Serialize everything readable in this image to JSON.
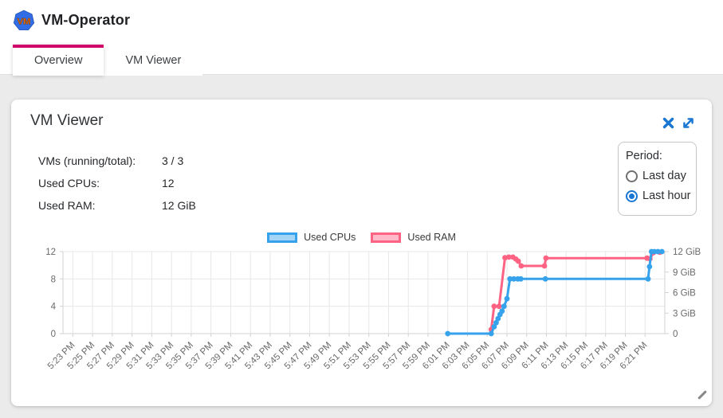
{
  "header": {
    "title": "VM-Operator",
    "logo_text": "VM"
  },
  "tabs": [
    {
      "label": "Overview",
      "active": true
    },
    {
      "label": "VM Viewer",
      "active": false
    }
  ],
  "panel": {
    "title": "VM Viewer",
    "stats": [
      {
        "label": "VMs (running/total):",
        "value": "3 / 3"
      },
      {
        "label": "Used CPUs:",
        "value": "12"
      },
      {
        "label": "Used RAM:",
        "value": "12 GiB"
      }
    ],
    "period": {
      "label": "Period:",
      "options": [
        {
          "label": "Last day",
          "selected": false
        },
        {
          "label": "Last hour",
          "selected": true
        }
      ]
    }
  },
  "icons": {
    "logo": "blue-heptagon-vm-badge",
    "close": "close-x",
    "expand": "diagonal-expand-arrows",
    "resize": "diagonal-resize-grip"
  },
  "colors": {
    "tab_indicator": "#d00669",
    "icon_blue": "#1976d2",
    "logo_blue": "#326de6",
    "logo_text_orange": "#f57200",
    "grid": "#e7e7e7",
    "axis_border": "#d2d2d2",
    "axis_text": "#696969",
    "content_background": "#ebebeb"
  },
  "chart_data": {
    "type": "line",
    "title": "",
    "x_unit_note": "minutes after 5:23 PM, 2-minute ticks",
    "xlim": [
      -1,
      60
    ],
    "x_tick_minutes": [
      0,
      2,
      4,
      6,
      8,
      10,
      12,
      14,
      16,
      18,
      20,
      22,
      24,
      26,
      28,
      30,
      32,
      34,
      36,
      38,
      40,
      42,
      44,
      46,
      48,
      50,
      52,
      54,
      56,
      58
    ],
    "x_tick_labels": [
      "5:23 PM",
      "5:25 PM",
      "5:27 PM",
      "5:29 PM",
      "5:31 PM",
      "5:33 PM",
      "5:35 PM",
      "5:37 PM",
      "5:39 PM",
      "5:41 PM",
      "5:43 PM",
      "5:45 PM",
      "5:47 PM",
      "5:49 PM",
      "5:51 PM",
      "5:53 PM",
      "5:55 PM",
      "5:57 PM",
      "5:59 PM",
      "6:01 PM",
      "6:03 PM",
      "6:05 PM",
      "6:07 PM",
      "6:09 PM",
      "6:11 PM",
      "6:13 PM",
      "6:15 PM",
      "6:17 PM",
      "6:19 PM",
      "6:21 PM"
    ],
    "left_axis": {
      "lim": [
        0,
        12
      ],
      "ticks": [
        0,
        4,
        8,
        12
      ],
      "labels": [
        "0",
        "4",
        "8",
        "12"
      ]
    },
    "right_axis": {
      "lim": [
        0,
        12
      ],
      "ticks": [
        0,
        3,
        6,
        9,
        12
      ],
      "labels": [
        "0",
        "3 GiB",
        "6 GiB",
        "9 GiB",
        "12 GiB"
      ]
    },
    "legend": [
      {
        "label": "Used CPUs",
        "color": "#36a2eb"
      },
      {
        "label": "Used RAM",
        "color": "#ff6384"
      }
    ],
    "series": [
      {
        "name": "Used CPUs",
        "axis": "left",
        "color": "#36a2eb",
        "points": [
          [
            38,
            0
          ],
          [
            42.4,
            0
          ],
          [
            42.7,
            1
          ],
          [
            42.9,
            1.6
          ],
          [
            43.1,
            2.2
          ],
          [
            43.3,
            2.8
          ],
          [
            43.5,
            3.3
          ],
          [
            43.7,
            4
          ],
          [
            44.0,
            5.1
          ],
          [
            44.3,
            8
          ],
          [
            44.7,
            8
          ],
          [
            45.1,
            8
          ],
          [
            45.4,
            8
          ],
          [
            47.9,
            8
          ],
          [
            58.3,
            8
          ],
          [
            58.45,
            9.8
          ],
          [
            58.65,
            12
          ],
          [
            58.95,
            12
          ],
          [
            59.3,
            12
          ],
          [
            59.7,
            12
          ]
        ]
      },
      {
        "name": "Used RAM",
        "axis": "right",
        "color": "#ff6384",
        "points": [
          [
            42.4,
            0.6
          ],
          [
            42.7,
            4
          ],
          [
            43.2,
            4
          ],
          [
            43.8,
            11.1
          ],
          [
            44.2,
            11.2
          ],
          [
            44.6,
            11.2
          ],
          [
            44.9,
            10.9
          ],
          [
            45.15,
            10.6
          ],
          [
            45.45,
            9.9
          ],
          [
            47.8,
            9.9
          ],
          [
            47.95,
            11.05
          ],
          [
            58.2,
            11.05
          ],
          [
            58.5,
            10.95
          ],
          [
            58.85,
            11.85
          ],
          [
            59.5,
            11.9
          ]
        ]
      }
    ]
  }
}
